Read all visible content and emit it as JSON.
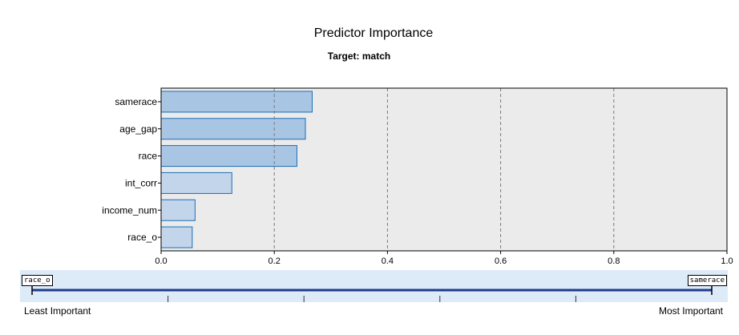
{
  "chart_data": {
    "type": "bar",
    "orientation": "horizontal",
    "title": "Predictor Importance",
    "subtitle": "Target: match",
    "categories": [
      "samerace",
      "age_gap",
      "race",
      "int_corr",
      "income_num",
      "race_o"
    ],
    "values": [
      0.267,
      0.255,
      0.24,
      0.125,
      0.06,
      0.055
    ],
    "bar_fills": [
      "#a9c5e4",
      "#a9c5e4",
      "#a9c5e4",
      "#c3d5ea",
      "#c3d5ea",
      "#c3d5ea"
    ],
    "bar_stroke": "#1a6fb5",
    "xlim": [
      0,
      1
    ],
    "xticks": [
      "0.0",
      "0.2",
      "0.4",
      "0.6",
      "0.8",
      "1.0"
    ],
    "grid": true,
    "plot_background": "#ebebeb"
  },
  "importance_scale": {
    "least_tag": "race_o",
    "most_tag": "samerace",
    "least_label": "Least Important",
    "most_label": "Most Important",
    "background": "#ddeaf8",
    "line_color": "#1e3c8c"
  }
}
